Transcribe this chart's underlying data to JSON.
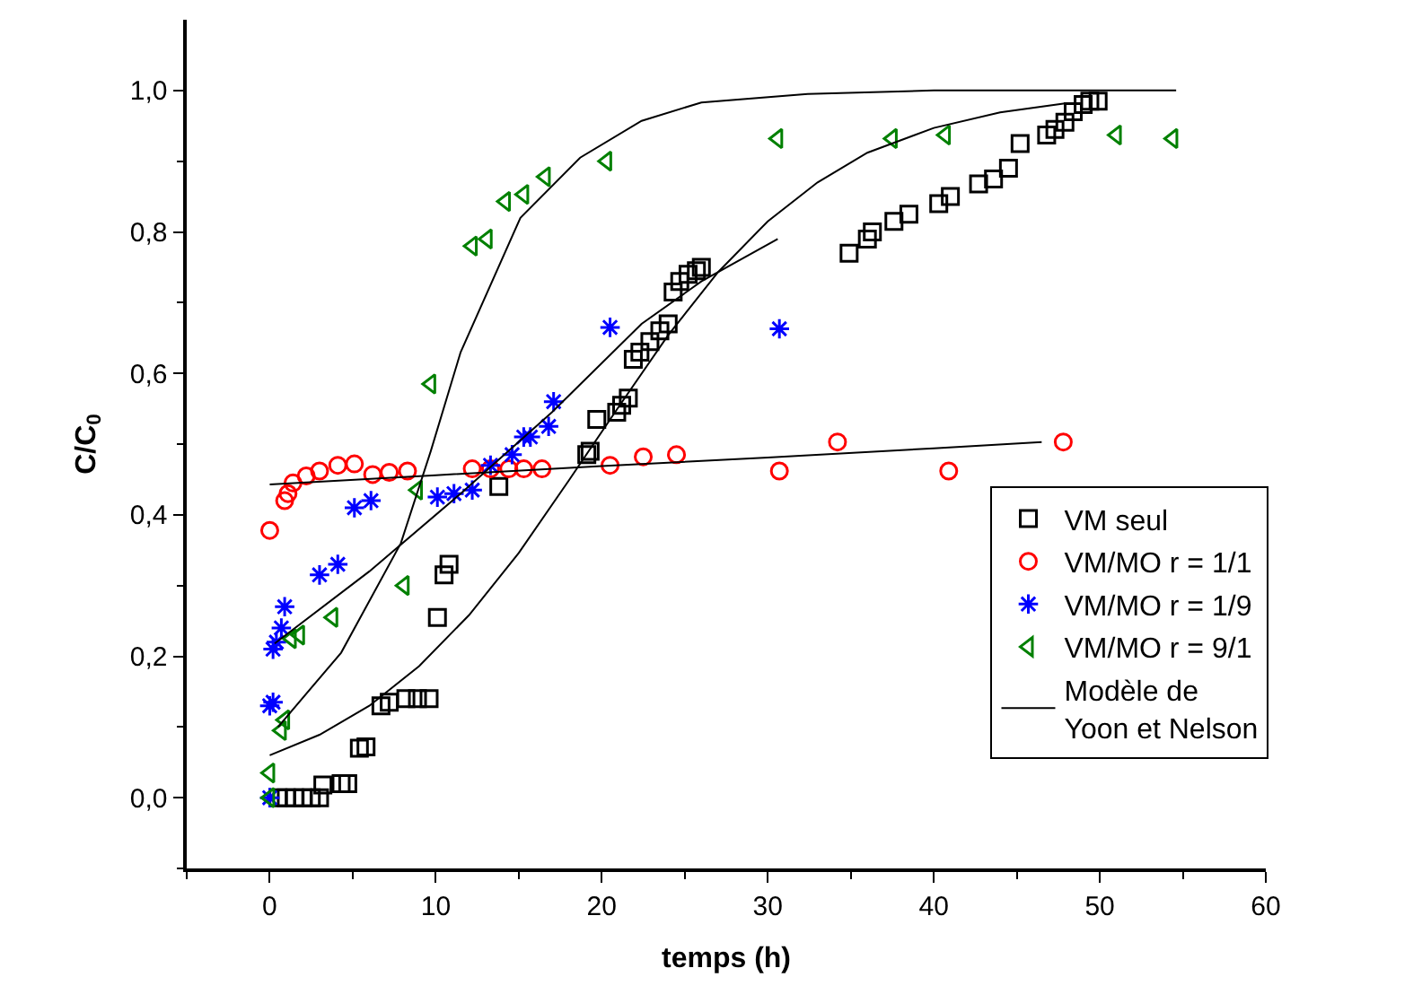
{
  "chart_data": {
    "type": "scatter",
    "xlabel": "temps (h)",
    "ylabel": "C/C$_{0}$",
    "xlim": [
      -5,
      60
    ],
    "ylim": [
      -0.1,
      1.1
    ],
    "xticks": [
      {
        "value": -5,
        "label": null
      },
      0,
      {
        "value": 5,
        "label": null
      },
      10,
      {
        "value": 15,
        "label": null
      },
      20,
      {
        "value": 25,
        "label": null
      },
      30,
      {
        "value": 35,
        "label": null
      },
      40,
      {
        "value": 45,
        "label": null
      },
      50,
      {
        "value": 55,
        "label": null
      },
      60
    ],
    "yticks": [
      {
        "value": -0.1,
        "label": null
      },
      {
        "value": 0,
        "label": "0,0"
      },
      {
        "value": 0.1,
        "label": null
      },
      {
        "value": 0.2,
        "label": "0,2"
      },
      {
        "value": 0.3,
        "label": null
      },
      {
        "value": 0.4,
        "label": "0,4"
      },
      {
        "value": 0.5,
        "label": null
      },
      {
        "value": 0.6,
        "label": "0,6"
      },
      {
        "value": 0.7,
        "label": null
      },
      {
        "value": 0.8,
        "label": "0,8"
      },
      {
        "value": 0.9,
        "label": null
      },
      {
        "value": 1.0,
        "label": "1,0"
      }
    ],
    "legend": "bottom right",
    "series": [
      {
        "name": "VM seul",
        "color": "#000000",
        "marker": "square",
        "x": [
          0.5,
          1,
          1.5,
          2,
          2.5,
          3,
          3.2,
          4.3,
          4.7,
          5.4,
          5.8,
          6.7,
          7.2,
          8.2,
          8.9,
          9.6,
          10.1,
          10.5,
          10.8,
          13.8,
          19.1,
          19.3,
          19.7,
          20.9,
          21.2,
          21.6,
          21.9,
          22.3,
          22.9,
          23.5,
          24,
          24.3,
          24.7,
          25.2,
          25.7,
          26,
          34.9,
          36,
          36.3,
          37.6,
          38.5,
          40.3,
          41,
          42.7,
          43.6,
          44.5,
          45.2,
          46.8,
          47.3,
          47.9,
          48.4,
          49,
          49.4,
          49.9
        ],
        "values": [
          0,
          0,
          0,
          0,
          0,
          0,
          0.018,
          0.02,
          0.02,
          0.07,
          0.072,
          0.13,
          0.135,
          0.14,
          0.14,
          0.14,
          0.255,
          0.315,
          0.33,
          0.44,
          0.485,
          0.49,
          0.535,
          0.545,
          0.555,
          0.565,
          0.62,
          0.63,
          0.645,
          0.66,
          0.67,
          0.715,
          0.73,
          0.74,
          0.745,
          0.75,
          0.77,
          0.79,
          0.8,
          0.815,
          0.825,
          0.84,
          0.85,
          0.868,
          0.875,
          0.89,
          0.925,
          0.937,
          0.945,
          0.955,
          0.97,
          0.98,
          0.985,
          0.985
        ]
      },
      {
        "name": "VM/MO r = 1/1",
        "color": "#ff0000",
        "marker": "circle",
        "x": [
          0,
          0.9,
          1.1,
          1.4,
          2.2,
          3,
          4.1,
          5.1,
          6.2,
          7.2,
          8.3,
          12.2,
          13.3,
          14.4,
          15.3,
          16.4,
          20.5,
          22.5,
          24.5,
          30.7,
          34.2,
          40.9,
          47.8
        ],
        "values": [
          0.378,
          0.42,
          0.43,
          0.445,
          0.455,
          0.462,
          0.47,
          0.472,
          0.457,
          0.46,
          0.462,
          0.465,
          0.465,
          0.465,
          0.465,
          0.465,
          0.47,
          0.482,
          0.485,
          0.462,
          0.503,
          0.462,
          0.503
        ]
      },
      {
        "name": "VM/MO r = 1/9",
        "color": "#0000ff",
        "marker": "cross",
        "x": [
          0,
          0,
          0.2,
          0.2,
          0.4,
          0.7,
          0.9,
          3,
          4.1,
          5.1,
          6.1,
          10.1,
          11.1,
          12.2,
          13.3,
          14.6,
          15.3,
          15.7,
          16.8,
          17.1,
          20.5,
          30.7
        ],
        "values": [
          0,
          0.13,
          0.135,
          0.21,
          0.22,
          0.24,
          0.27,
          0.315,
          0.33,
          0.41,
          0.42,
          0.425,
          0.43,
          0.435,
          0.47,
          0.485,
          0.51,
          0.51,
          0.525,
          0.56,
          0.665,
          0.663
        ]
      },
      {
        "name": "VM/MO r = 9/1",
        "color": "#008000",
        "marker": "triangle",
        "x": [
          0,
          0,
          0.7,
          0.9,
          1.3,
          1.8,
          3.8,
          8.1,
          8.9,
          9.7,
          12.2,
          13.1,
          14.2,
          15.3,
          16.6,
          20.3,
          30.6,
          37.5,
          40.7,
          51,
          54.4
        ],
        "values": [
          0,
          0.035,
          0.095,
          0.11,
          0.225,
          0.23,
          0.255,
          0.3,
          0.435,
          0.585,
          0.78,
          0.79,
          0.843,
          0.853,
          0.878,
          0.9,
          0.932,
          0.932,
          0.937,
          0.937,
          0.932
        ]
      },
      {
        "name": "Modèle de\nYoon et Nelson",
        "type": "line",
        "color": "#000000",
        "marker": "none",
        "x": [
          0,
          3,
          6,
          9,
          12,
          15,
          18,
          21,
          24,
          27,
          30,
          33,
          36,
          40,
          44,
          48
        ],
        "values": [
          0.06,
          0.089,
          0.13,
          0.186,
          0.258,
          0.346,
          0.448,
          0.552,
          0.654,
          0.743,
          0.815,
          0.87,
          0.912,
          0.947,
          0.969,
          0.982
        ]
      },
      {
        "type": "line",
        "color": "#000000",
        "marker": "none",
        "x": [
          0,
          10,
          20,
          30,
          40,
          46.5
        ],
        "values": [
          0.443,
          0.456,
          0.469,
          0.481,
          0.494,
          0.503
        ]
      },
      {
        "type": "line",
        "color": "#000000",
        "marker": "none",
        "x": [
          0.3,
          6,
          11.5,
          17,
          22.4,
          26,
          30.6
        ],
        "values": [
          0.218,
          0.32,
          0.43,
          0.545,
          0.67,
          0.73,
          0.79
        ]
      },
      {
        "type": "line",
        "color": "#000000",
        "marker": "none",
        "x": [
          0.5,
          4.3,
          7.9,
          9.7,
          11.5,
          15.1,
          18.7,
          22.4,
          26,
          32.4,
          40,
          54.6
        ],
        "values": [
          0.1,
          0.205,
          0.36,
          0.49,
          0.63,
          0.82,
          0.905,
          0.957,
          0.983,
          0.995,
          1.0,
          1.0
        ]
      }
    ]
  }
}
